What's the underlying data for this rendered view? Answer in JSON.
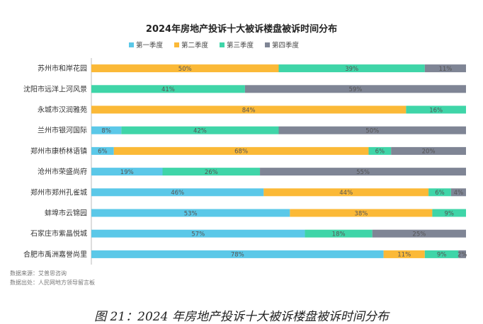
{
  "chart_data": {
    "type": "bar",
    "orientation": "horizontal",
    "stacked": true,
    "normalized": true,
    "title": "2024年房地产投诉十大被诉楼盘被诉时间分布",
    "legend_position": "top",
    "categories": [
      "苏州市和岸花园",
      "沈阳市远洋上河风景",
      "永城市汉润雅苑",
      "兰州市银河国际",
      "郑州市康桥林语镇",
      "沧州市荣盛尚府",
      "郑州市郑州孔雀城",
      "蚌埠市云锦园",
      "石家庄市紫晶悦城",
      "合肥市禹洲嘉誉尚里"
    ],
    "series": [
      {
        "name": "第一季度",
        "color": "#5bc8e8",
        "values": [
          0,
          0,
          0,
          8,
          6,
          19,
          46,
          53,
          57,
          78
        ],
        "labels": [
          "",
          "",
          "",
          "8%",
          "6%",
          "19%",
          "46%",
          "53%",
          "57%",
          "78%"
        ]
      },
      {
        "name": "第二季度",
        "color": "#fbb937",
        "values": [
          50,
          0,
          84,
          0,
          68,
          0,
          44,
          38,
          0,
          11
        ],
        "labels": [
          "50%",
          "",
          "84%",
          "",
          "68%",
          "",
          "44%",
          "38%",
          "",
          "11%"
        ]
      },
      {
        "name": "第三季度",
        "color": "#3fd5a8",
        "values": [
          39,
          41,
          16,
          42,
          6,
          26,
          6,
          9,
          18,
          9
        ],
        "labels": [
          "39%",
          "41%",
          "16%",
          "42%",
          "6%",
          "26%",
          "6%",
          "9%",
          "18%",
          "9%"
        ]
      },
      {
        "name": "第四季度",
        "color": "#7f8595",
        "values": [
          11,
          59,
          0,
          50,
          20,
          55,
          4,
          0,
          25,
          2
        ],
        "labels": [
          "11%",
          "59%",
          "",
          "50%",
          "20%",
          "55%",
          "4%",
          "",
          "25%",
          "2%"
        ]
      }
    ],
    "xlim": [
      0,
      100
    ],
    "grid": false
  },
  "notes": {
    "source": "数据来源：艾普思咨询",
    "origin": "数据出处：人民网地方领导留言板"
  },
  "caption": "图 21：2024 年房地产投诉十大被诉楼盘被诉时间分布"
}
